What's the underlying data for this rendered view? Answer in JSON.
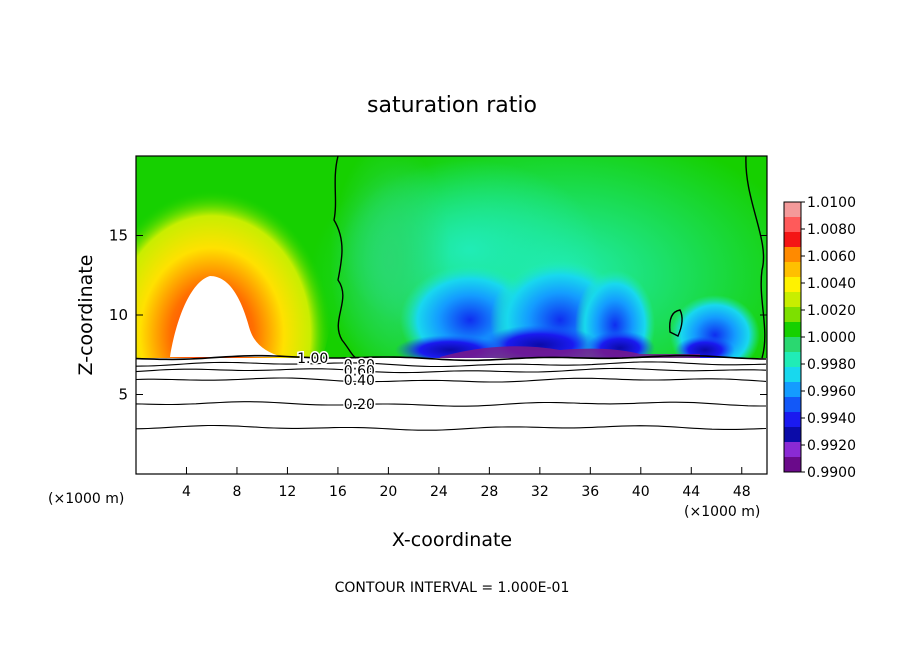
{
  "chart_data": {
    "type": "heatmap",
    "title": "saturation ratio",
    "xlabel": "X-coordinate",
    "ylabel": "Z-coordinate",
    "x_unit_left": "(×1000 m)",
    "x_unit_right": "(×1000 m)",
    "footer": "CONTOUR INTERVAL = 1.000E-01",
    "xlim": [
      0,
      50
    ],
    "ylim": [
      0,
      20
    ],
    "xticks": [
      4,
      8,
      12,
      16,
      20,
      24,
      28,
      32,
      36,
      40,
      44,
      48
    ],
    "yticks": [
      5,
      10,
      15
    ],
    "colorbar": {
      "range": [
        0.99,
        1.01
      ],
      "ticks": [
        "1.0100",
        "1.0080",
        "1.0060",
        "1.0040",
        "1.0020",
        "1.0000",
        "0.9980",
        "0.9960",
        "0.9940",
        "0.9920",
        "0.9900"
      ],
      "colors": [
        "#f49a9a",
        "#ff5a5a",
        "#f41515",
        "#ff8a00",
        "#ffc000",
        "#fff200",
        "#c8ee00",
        "#7de000",
        "#16d000",
        "#2ad870",
        "#20ecb6",
        "#18d8ee",
        "#149cff",
        "#1258f8",
        "#1a1af0",
        "#0b0ba8",
        "#8a2ad4",
        "#6a0a8a"
      ]
    },
    "contours": [
      {
        "level": "1.00",
        "z": 7.3
      },
      {
        "level": "0.80",
        "z": 6.9
      },
      {
        "level": "0.60",
        "z": 6.5
      },
      {
        "level": "0.40",
        "z": 5.9
      },
      {
        "level": "0.20",
        "z": 4.4
      },
      {
        "level": "",
        "z": 2.9
      }
    ],
    "contour_labels": [
      {
        "text": "1.00",
        "x": 14.0,
        "z": 7.3
      },
      {
        "text": "0.80",
        "x": 17.7,
        "z": 6.9
      },
      {
        "text": "0.60",
        "x": 17.7,
        "z": 6.5
      },
      {
        "text": "0.40",
        "x": 17.7,
        "z": 5.9
      },
      {
        "text": "0.20",
        "x": 17.7,
        "z": 4.4
      }
    ],
    "field_features": [
      {
        "description": "supersaturated plume",
        "x_center": 6.0,
        "z_top": 17.0,
        "max_value": 1.01
      },
      {
        "description": "subsaturated region",
        "x_range": [
          18,
          48
        ],
        "z_range": [
          7.3,
          13.0
        ],
        "min_value": 0.99
      }
    ]
  }
}
